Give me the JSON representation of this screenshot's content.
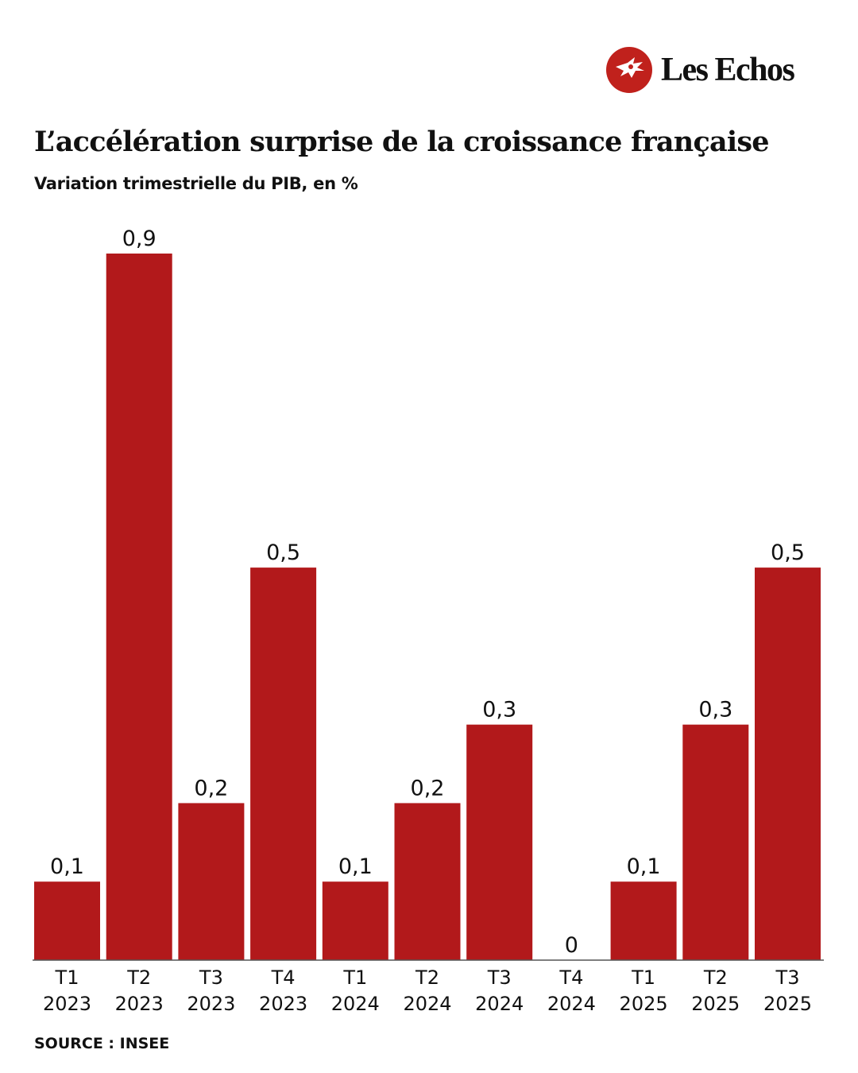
{
  "brand": {
    "name": "Les Echos",
    "logo_icon": "echos-hermes-logo-icon",
    "color": "#c0211c"
  },
  "chart_data": {
    "type": "bar",
    "title": "L’accélération surprise de la croissance française",
    "subtitle": "Variation trimestrielle du PIB, en %",
    "categories": [
      [
        "T1",
        "2023"
      ],
      [
        "T2",
        "2023"
      ],
      [
        "T3",
        "2023"
      ],
      [
        "T4",
        "2023"
      ],
      [
        "T1",
        "2024"
      ],
      [
        "T2",
        "2024"
      ],
      [
        "T3",
        "2024"
      ],
      [
        "T4",
        "2024"
      ],
      [
        "T1",
        "2025"
      ],
      [
        "T2",
        "2025"
      ],
      [
        "T3",
        "2025"
      ]
    ],
    "values": [
      0.1,
      0.9,
      0.2,
      0.5,
      0.1,
      0.2,
      0.3,
      0,
      0.1,
      0.3,
      0.5
    ],
    "value_labels": [
      "0,1",
      "0,9",
      "0,2",
      "0,5",
      "0,1",
      "0,2",
      "0,3",
      "0",
      "0,1",
      "0,3",
      "0,5"
    ],
    "ylim": [
      0,
      0.9
    ],
    "grid": false,
    "bar_color": "#b2191b",
    "source": "SOURCE : INSEE"
  }
}
